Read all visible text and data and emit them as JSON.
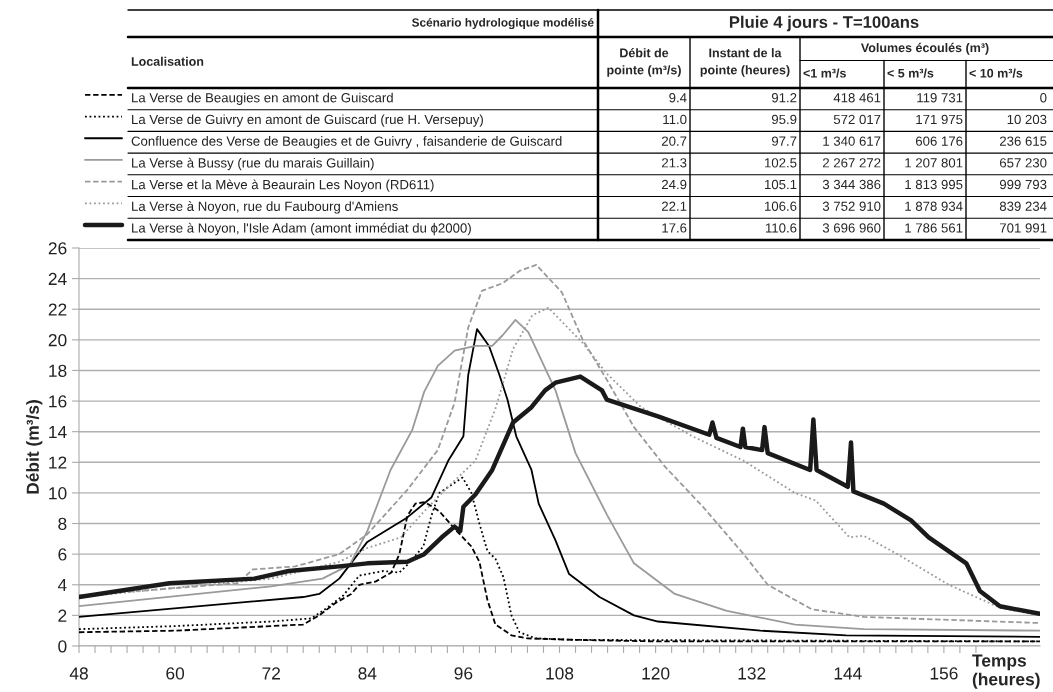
{
  "chart_data": {
    "type": "line",
    "ylabel": "Débit (m³/s)",
    "xlabel": "Temps (heures)",
    "xlim": [
      48,
      168
    ],
    "ylim": [
      0,
      26
    ],
    "xticks": [
      48,
      {
        "value": 50,
        "label": null
      },
      {
        "value": 52,
        "label": null
      },
      {
        "value": 54,
        "label": null
      },
      {
        "value": 56,
        "label": null
      },
      {
        "value": 58,
        "label": null
      },
      60,
      {
        "value": 62,
        "label": null
      },
      {
        "value": 64,
        "label": null
      },
      {
        "value": 66,
        "label": null
      },
      {
        "value": 68,
        "label": null
      },
      {
        "value": 70,
        "label": null
      },
      72,
      {
        "value": 74,
        "label": null
      },
      {
        "value": 76,
        "label": null
      },
      {
        "value": 78,
        "label": null
      },
      {
        "value": 80,
        "label": null
      },
      {
        "value": 82,
        "label": null
      },
      84,
      {
        "value": 86,
        "label": null
      },
      {
        "value": 88,
        "label": null
      },
      {
        "value": 90,
        "label": null
      },
      {
        "value": 92,
        "label": null
      },
      {
        "value": 94,
        "label": null
      },
      96,
      {
        "value": 98,
        "label": null
      },
      {
        "value": 100,
        "label": null
      },
      {
        "value": 102,
        "label": null
      },
      {
        "value": 104,
        "label": null
      },
      {
        "value": 106,
        "label": null
      },
      108,
      {
        "value": 110,
        "label": null
      },
      {
        "value": 112,
        "label": null
      },
      {
        "value": 114,
        "label": null
      },
      {
        "value": 116,
        "label": null
      },
      {
        "value": 118,
        "label": null
      },
      120,
      {
        "value": 122,
        "label": null
      },
      {
        "value": 124,
        "label": null
      },
      {
        "value": 126,
        "label": null
      },
      {
        "value": 128,
        "label": null
      },
      {
        "value": 130,
        "label": null
      },
      132,
      {
        "value": 134,
        "label": null
      },
      {
        "value": 136,
        "label": null
      },
      {
        "value": 138,
        "label": null
      },
      {
        "value": 140,
        "label": null
      },
      {
        "value": 142,
        "label": null
      },
      144,
      {
        "value": 146,
        "label": null
      },
      {
        "value": 148,
        "label": null
      },
      {
        "value": 150,
        "label": null
      },
      {
        "value": 152,
        "label": null
      },
      {
        "value": 154,
        "label": null
      },
      156,
      {
        "value": 158,
        "label": null
      },
      {
        "value": 160,
        "label": null
      }
    ],
    "yticks": [
      0,
      2,
      4,
      6,
      8,
      10,
      12,
      14,
      16,
      18,
      20,
      22,
      24,
      26
    ],
    "grid": "y",
    "legend": "top left",
    "marker": "none",
    "series": [
      {
        "name": "La Verse de Beaugies en amont de Guiscard",
        "color": "#000000",
        "line_style": "dashed",
        "x": [
          48,
          60,
          72,
          76,
          78,
          80,
          82,
          83,
          85,
          87,
          88,
          89,
          90,
          91.2,
          93,
          95,
          97,
          98,
          99,
          100,
          102,
          104,
          110,
          120,
          168
        ],
        "values": [
          0.9,
          1.0,
          1.3,
          1.4,
          2.0,
          2.8,
          3.4,
          4.0,
          4.2,
          4.8,
          6.0,
          8.5,
          9.3,
          9.4,
          8.8,
          7.6,
          6.5,
          5.5,
          3.0,
          1.4,
          0.7,
          0.5,
          0.4,
          0.3,
          0.3
        ]
      },
      {
        "name": "La Verse de Guivry en amont de Guiscard (rue H. Versepuy)",
        "color": "#000000",
        "line_style": "dotted",
        "x": [
          48,
          60,
          72,
          77,
          79,
          81,
          83,
          86,
          88,
          89,
          91,
          92,
          93,
          95.9,
          97,
          98,
          99,
          100,
          101,
          102,
          103,
          105,
          110,
          168
        ],
        "values": [
          1.1,
          1.3,
          1.6,
          1.8,
          2.5,
          3.3,
          4.6,
          4.9,
          4.8,
          5.3,
          6.5,
          8.5,
          10.0,
          11.0,
          10.0,
          8.0,
          6.2,
          5.7,
          4.5,
          2.0,
          0.9,
          0.5,
          0.4,
          0.3
        ]
      },
      {
        "name": "Confluence des Verse de Beaugies et de Guivry , faisanderie de Guiscard",
        "color": "#000000",
        "line_style": "solid",
        "x": [
          48,
          76,
          78,
          80.5,
          84,
          89,
          92,
          94.1,
          96,
          96.6,
          97.7,
          99.2,
          100.5,
          101.5,
          102.6,
          104.5,
          105.4,
          107.5,
          109.2,
          113,
          117.3,
          120.3,
          133.1,
          143.8,
          168
        ],
        "values": [
          1.9,
          3.2,
          3.4,
          4.4,
          6.8,
          8.4,
          9.7,
          12.1,
          13.7,
          17.7,
          20.7,
          19.6,
          17.7,
          16.1,
          13.7,
          11.5,
          9.3,
          6.9,
          4.7,
          3.2,
          2.0,
          1.6,
          1.0,
          0.7,
          0.6
        ]
      },
      {
        "name": "La Verse à Bussy (rue du marais Guillain)",
        "color": "#9a9a9a",
        "line_style": "solid",
        "x": [
          48,
          72,
          78.4,
          81.8,
          84,
          86.9,
          89.6,
          91.1,
          92.8,
          94.9,
          97.5,
          99.6,
          100.9,
          102.5,
          104.1,
          107.5,
          110,
          113.9,
          117.3,
          122.4,
          128.9,
          137.4,
          146,
          168
        ],
        "values": [
          2.6,
          3.9,
          4.4,
          5.3,
          7.5,
          11.5,
          14.1,
          16.6,
          18.3,
          19.3,
          19.6,
          19.6,
          20.3,
          21.3,
          20.5,
          16.7,
          12.6,
          8.6,
          5.4,
          3.4,
          2.3,
          1.4,
          1.1,
          1.0
        ]
      },
      {
        "name": "La Verse et la Mève à Beaurain Les Noyon (RD611)",
        "color": "#9a9a9a",
        "line_style": "dashed",
        "x": [
          48,
          67.8,
          69.7,
          75,
          80.5,
          84,
          89,
          92.8,
          94.9,
          96.6,
          98.3,
          100.9,
          103,
          105.1,
          108.3,
          110.9,
          113.9,
          117.3,
          121.2,
          125.9,
          131,
          134,
          139.5,
          146,
          168
        ],
        "values": [
          3.3,
          4.1,
          5.0,
          5.2,
          6.0,
          7.3,
          10.2,
          12.8,
          15.9,
          20.8,
          23.2,
          23.7,
          24.5,
          24.9,
          23.1,
          20.0,
          17.4,
          14.3,
          11.7,
          9.1,
          6.0,
          4.0,
          2.4,
          1.9,
          1.5
        ]
      },
      {
        "name": "La Verse à Noyon, rue du Faubourg d'Amiens",
        "color": "#9a9a9a",
        "line_style": "dotted",
        "x": [
          48,
          72,
          80.5,
          84,
          88.2,
          91.1,
          94.1,
          97.5,
          100,
          102.2,
          104.6,
          106.6,
          110.9,
          113.9,
          118.2,
          124.6,
          131,
          137.4,
          140,
          144.2,
          146,
          150.2,
          156.6,
          163,
          168
        ],
        "values": [
          3.2,
          4.4,
          5.5,
          6.4,
          7.1,
          8.8,
          10.4,
          12.1,
          15.5,
          19.4,
          21.6,
          22.1,
          19.8,
          17.8,
          15.6,
          13.7,
          12.1,
          10.0,
          9.5,
          7.1,
          7.2,
          6.0,
          4.0,
          2.5,
          2.0
        ]
      },
      {
        "name": "La Verse à Noyon, l'Isle Adam (amont immédiat du ϕ2000)",
        "color": "#1a1a1a",
        "line_style": "solid",
        "x": [
          48,
          59.3,
          69.9,
          74.2,
          80.5,
          84,
          89,
          91.1,
          93.3,
          94.9,
          95.6,
          96,
          97.5,
          99.6,
          102.2,
          104.5,
          106.2,
          107.5,
          110.6,
          113.3,
          113.9,
          120.3,
          126.7,
          127.1,
          127.6,
          130.6,
          130.9,
          131.2,
          133.3,
          133.6,
          134,
          139.3,
          139.7,
          140.1,
          144,
          144.4,
          144.7,
          148.5,
          151.9,
          154.1,
          158.8,
          160.5,
          163,
          168
        ],
        "values": [
          3.2,
          4.1,
          4.4,
          4.9,
          5.2,
          5.4,
          5.5,
          6.0,
          7.1,
          7.8,
          7.5,
          9.1,
          9.9,
          11.5,
          14.6,
          15.6,
          16.7,
          17.2,
          17.6,
          16.7,
          16.1,
          15.0,
          13.8,
          14.6,
          13.6,
          13.0,
          14.2,
          13.0,
          12.8,
          14.3,
          12.6,
          11.5,
          14.8,
          11.5,
          10.4,
          13.3,
          10.1,
          9.3,
          8.2,
          7.1,
          5.4,
          3.6,
          2.6,
          2.1
        ]
      }
    ],
    "annotations": [
      "Scénario hydrologique modélisé",
      "Pluie 4 jours - T=100ans",
      "Localisation",
      "Débit de\npointe (m³/s)",
      "Instant de la\npointe (heures)",
      "Volumes écoulés (m³)",
      "<1 m³/s",
      "< 5 m³/s",
      "< 10 m³/s",
      "9.4",
      "91.2",
      "418 461",
      "119 731",
      "0",
      "11.0",
      "95.9",
      "572 017",
      "171 975",
      "10 203",
      "20.7",
      "97.7",
      "1 340 617",
      "606 176",
      "236 615",
      "21.3",
      "102.5",
      "2 267 272",
      "1 207 801",
      "657 230",
      "24.9",
      "105.1",
      "3 344 386",
      "1 813 995",
      "999 793",
      "22.1",
      "106.6",
      "3 752 910",
      "1 878 934",
      "839 234",
      "17.6",
      "110.6",
      "3 696 960",
      "1 786 561",
      "701 991"
    ]
  }
}
